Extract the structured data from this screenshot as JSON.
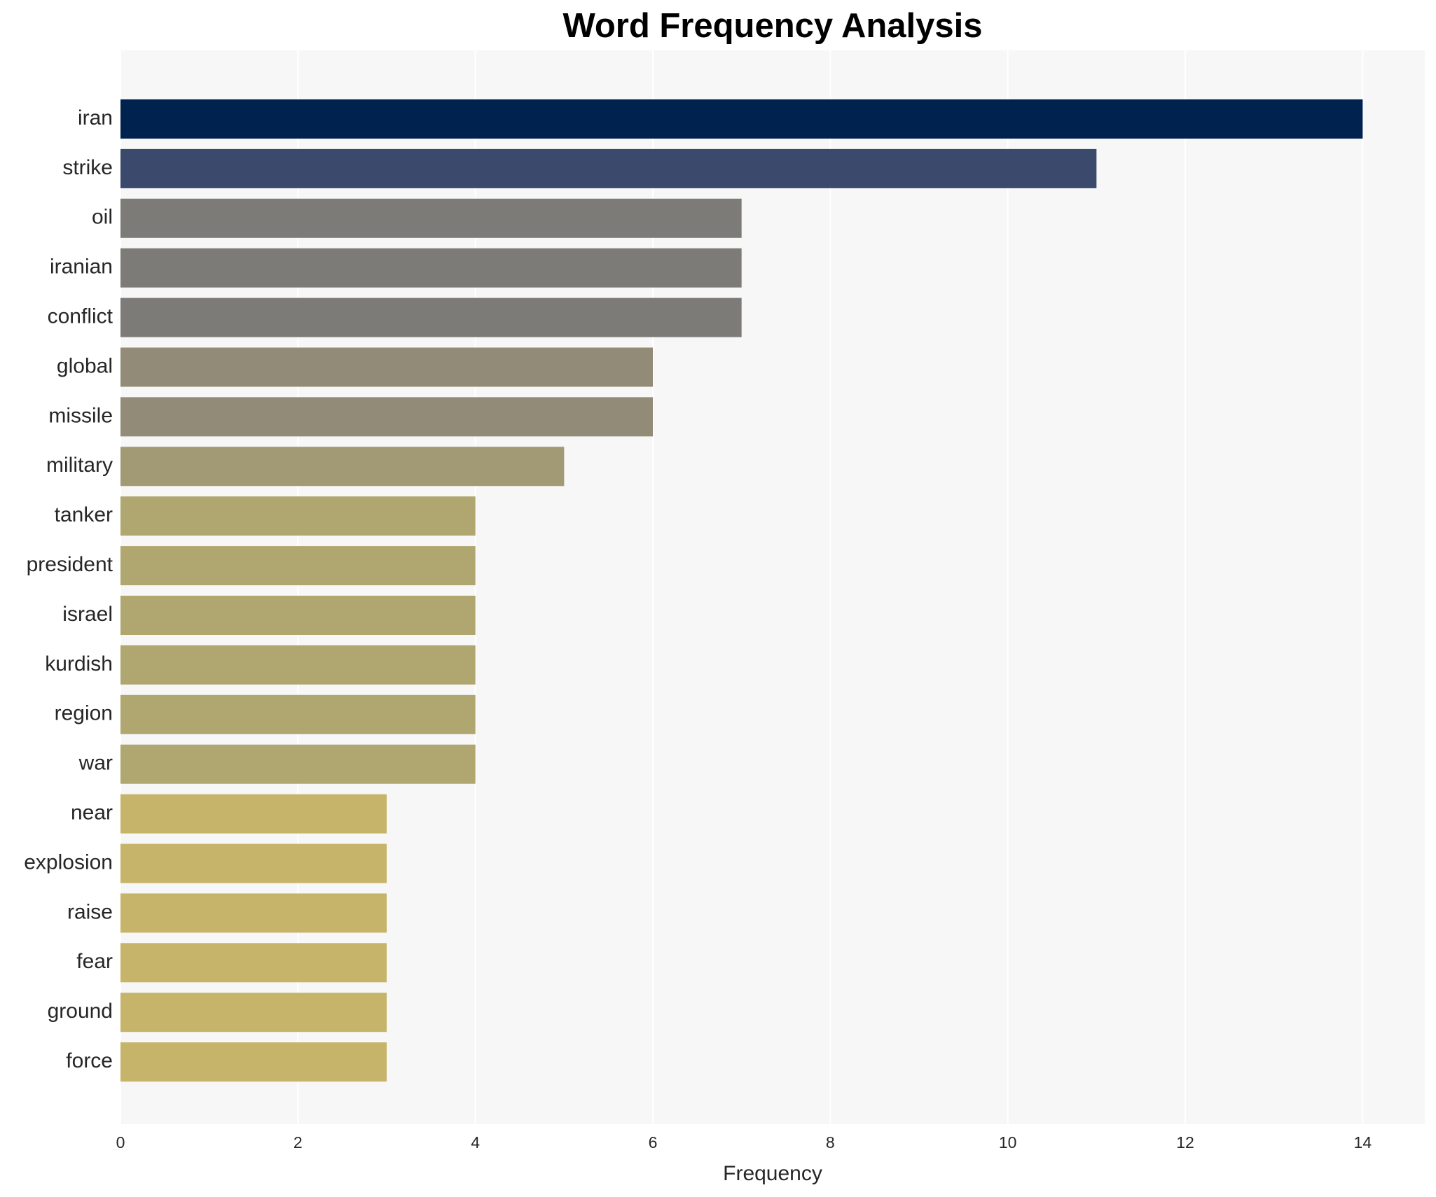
{
  "chart_data": {
    "type": "barh",
    "title": "Word Frequency Analysis",
    "x_label": "Frequency",
    "categories": [
      "iran",
      "strike",
      "oil",
      "iranian",
      "conflict",
      "global",
      "missile",
      "military",
      "tanker",
      "president",
      "israel",
      "kurdish",
      "region",
      "war",
      "near",
      "explosion",
      "raise",
      "fear",
      "ground",
      "force"
    ],
    "values": [
      14,
      11,
      7,
      7,
      7,
      6,
      6,
      5,
      4,
      4,
      4,
      4,
      4,
      4,
      3,
      3,
      3,
      3,
      3,
      3
    ],
    "colors": [
      "#00224e",
      "#3b496c",
      "#7c7b78",
      "#7c7b78",
      "#7c7b78",
      "#918b77",
      "#918b77",
      "#a19a75",
      "#b0a66f",
      "#b0a66f",
      "#b0a66f",
      "#b0a66f",
      "#b0a66f",
      "#b0a66f",
      "#c5b46a",
      "#c5b46a",
      "#c5b46a",
      "#c5b46a",
      "#c5b46a",
      "#c5b46a"
    ],
    "xlim": [
      0,
      14.7
    ],
    "xticks": [
      0,
      2,
      4,
      6,
      8,
      10,
      12,
      14
    ],
    "grid": true
  }
}
